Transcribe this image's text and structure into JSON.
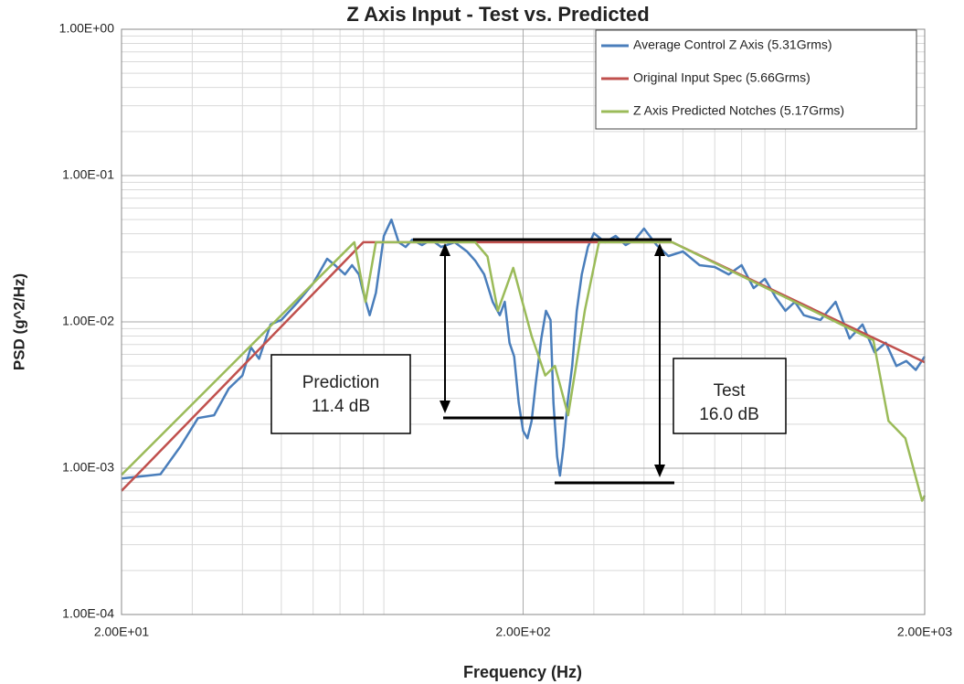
{
  "chart_data": {
    "type": "line",
    "title": "Z Axis Input - Test vs. Predicted",
    "x_label": "Frequency (Hz)",
    "y_label": "PSD (g^2/Hz)",
    "log_x": true,
    "log_y": true,
    "grid": true,
    "legend": "upper right",
    "xlim": [
      20,
      2000
    ],
    "ylim": [
      0.0001,
      1
    ],
    "xticks": [
      {
        "value": 20,
        "label": "2.00E+01"
      },
      {
        "value": 200,
        "label": "2.00E+02"
      },
      {
        "value": 2000,
        "label": "2.00E+03"
      }
    ],
    "yticks": [
      {
        "value": 0.0001,
        "label": "1.00E-04"
      },
      {
        "value": 0.001,
        "label": "1.00E-03"
      },
      {
        "value": 0.01,
        "label": "1.00E-02"
      },
      {
        "value": 0.1,
        "label": "1.00E-01"
      },
      {
        "value": 1,
        "label": "1.00E+00"
      }
    ],
    "series": [
      {
        "name": "Average Control Z Axis (5.31Grms)",
        "color": "#4a7ebb",
        "x": [
          20,
          25,
          28,
          31,
          34,
          37,
          40,
          42,
          44,
          47,
          50,
          55,
          60,
          65,
          68,
          72,
          75,
          78,
          80,
          83,
          86,
          90,
          94,
          98,
          102,
          106,
          112,
          118,
          125,
          135,
          145,
          152,
          160,
          168,
          175,
          180,
          185,
          190,
          195,
          200,
          205,
          210,
          215,
          222,
          228,
          234,
          238,
          243,
          247,
          252,
          258,
          265,
          272,
          280,
          290,
          300,
          320,
          340,
          360,
          380,
          400,
          430,
          460,
          500,
          550,
          600,
          650,
          700,
          750,
          800,
          850,
          900,
          950,
          1000,
          1100,
          1200,
          1300,
          1400,
          1500,
          1600,
          1700,
          1800,
          1900,
          2000
        ],
        "values": [
          0.00085,
          0.00091,
          0.0014,
          0.0022,
          0.0023,
          0.0035,
          0.0043,
          0.0067,
          0.0056,
          0.0096,
          0.0103,
          0.0137,
          0.0183,
          0.027,
          0.0244,
          0.0211,
          0.0244,
          0.0211,
          0.0158,
          0.0111,
          0.0158,
          0.0387,
          0.05,
          0.035,
          0.0325,
          0.0365,
          0.0335,
          0.0365,
          0.0325,
          0.035,
          0.0303,
          0.0262,
          0.0211,
          0.0137,
          0.0111,
          0.0137,
          0.0072,
          0.0058,
          0.0028,
          0.0018,
          0.0016,
          0.0021,
          0.0038,
          0.0077,
          0.0119,
          0.0103,
          0.0028,
          0.0012,
          0.00089,
          0.0014,
          0.0028,
          0.005,
          0.0119,
          0.0211,
          0.0325,
          0.0404,
          0.035,
          0.0387,
          0.0335,
          0.0365,
          0.0434,
          0.0335,
          0.0282,
          0.0303,
          0.0244,
          0.0237,
          0.0211,
          0.0244,
          0.017,
          0.0197,
          0.0148,
          0.0119,
          0.0137,
          0.0111,
          0.0103,
          0.0137,
          0.0077,
          0.0096,
          0.0062,
          0.0072,
          0.005,
          0.0054,
          0.0047,
          0.0058
        ]
      },
      {
        "name": "Original Input Spec (5.66Grms)",
        "color": "#c0504d",
        "x": [
          20,
          80,
          470,
          2000
        ],
        "values": [
          0.0007,
          0.035,
          0.035,
          0.0053
        ]
      },
      {
        "name": "Z Axis Predicted Notches (5.17Grms)",
        "color": "#9bbb59",
        "x": [
          20,
          76,
          81,
          86,
          152,
          163,
          173,
          189,
          210,
          227,
          240,
          259,
          285,
          309,
          470,
          1490,
          1625,
          1790,
          1970,
          2000
        ],
        "values": [
          0.0009,
          0.035,
          0.0137,
          0.035,
          0.035,
          0.028,
          0.0119,
          0.0234,
          0.008,
          0.0043,
          0.005,
          0.0023,
          0.012,
          0.035,
          0.035,
          0.0075,
          0.0021,
          0.0016,
          0.0006,
          0.00065
        ]
      }
    ],
    "annotations": [
      {
        "lines": [
          "Prediction",
          "11.4 dB"
        ]
      },
      {
        "lines": [
          "Test",
          "16.0 dB"
        ]
      }
    ]
  }
}
